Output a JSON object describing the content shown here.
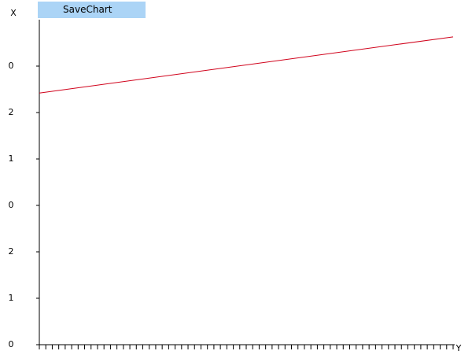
{
  "button": {
    "label": "SaveChart"
  },
  "chart_data": {
    "type": "line",
    "x_label": "Y",
    "y_label": "X",
    "x": [
      0,
      64
    ],
    "series": [
      {
        "color": "#d0021b",
        "values": [
          5.42,
          6.63
        ]
      }
    ],
    "xlim": [
      0,
      64
    ],
    "ylim": [
      0,
      7
    ],
    "xticks": [
      0,
      1,
      2,
      3,
      4,
      5,
      6,
      7,
      8,
      9,
      10,
      11,
      12,
      13,
      14,
      15,
      16,
      17,
      18,
      19,
      20,
      21,
      22,
      23,
      24,
      25,
      26,
      27,
      28,
      29,
      30,
      31,
      32,
      33,
      34,
      35,
      36,
      37,
      38,
      39,
      40,
      41,
      42,
      43,
      44,
      45,
      46,
      47,
      48,
      49,
      50,
      51,
      52,
      53,
      54,
      55,
      56,
      57,
      58,
      59,
      60,
      61,
      62,
      63,
      64
    ],
    "yticks": [
      0,
      1,
      2,
      {
        "value": 3,
        "label": "0"
      },
      {
        "value": 4,
        "label": "1"
      },
      {
        "value": 5,
        "label": "2"
      },
      {
        "value": 6,
        "label": "0"
      }
    ]
  }
}
